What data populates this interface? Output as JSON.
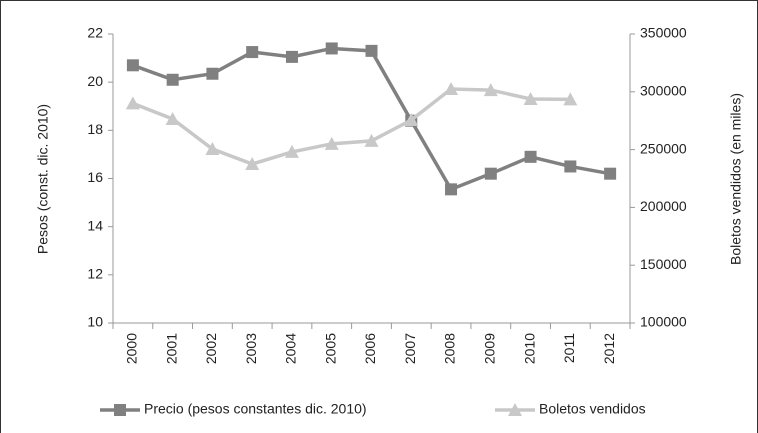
{
  "chart_data": {
    "type": "line",
    "y_label": "Pesos (const. dic. 2010)",
    "y2_label": "Boletos vendidos (en miles)",
    "categories": [
      "2000",
      "2001",
      "2002",
      "2003",
      "2004",
      "2005",
      "2006",
      "2007",
      "2008",
      "2009",
      "2010",
      "2011",
      "2012"
    ],
    "series": [
      {
        "name": "Precio (pesos constantes dic. 2010)",
        "color": "#808080",
        "marker": "square",
        "values": [
          20.7,
          20.1,
          20.35,
          21.25,
          21.05,
          21.4,
          21.3,
          18.4,
          15.55,
          16.2,
          16.9,
          16.5,
          16.2
        ]
      },
      {
        "name": "Boletos vendidos",
        "color": "#c8c8c8",
        "marker": "triangle",
        "axis": "y2",
        "values": [
          290000,
          276500,
          250500,
          237500,
          248000,
          255000,
          257500,
          275600,
          302400,
          301500,
          293800,
          293500,
          null
        ]
      }
    ],
    "ylim": [
      10,
      22
    ],
    "yticks": [
      10,
      12,
      14,
      16,
      18,
      20,
      22
    ],
    "y2lim": [
      100000,
      350000
    ],
    "y2ticks": [
      100000,
      150000,
      200000,
      250000,
      300000,
      350000
    ],
    "grid": false,
    "legend": "bottom"
  }
}
